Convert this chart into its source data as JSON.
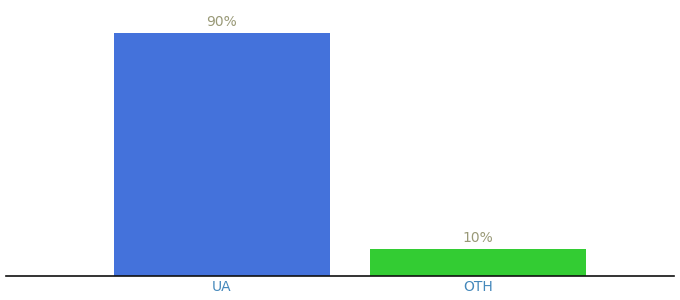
{
  "categories": [
    "UA",
    "OTH"
  ],
  "values": [
    90,
    10
  ],
  "bar_colors": [
    "#4472db",
    "#33cc33"
  ],
  "label_texts": [
    "90%",
    "10%"
  ],
  "ylim": [
    0,
    100
  ],
  "background_color": "#ffffff",
  "bar_width": 0.55,
  "label_fontsize": 10,
  "tick_fontsize": 10,
  "label_color": "#999977",
  "tick_color": "#4488bb",
  "x_positions": [
    0.35,
    1.0
  ],
  "xlim": [
    -0.2,
    1.5
  ]
}
